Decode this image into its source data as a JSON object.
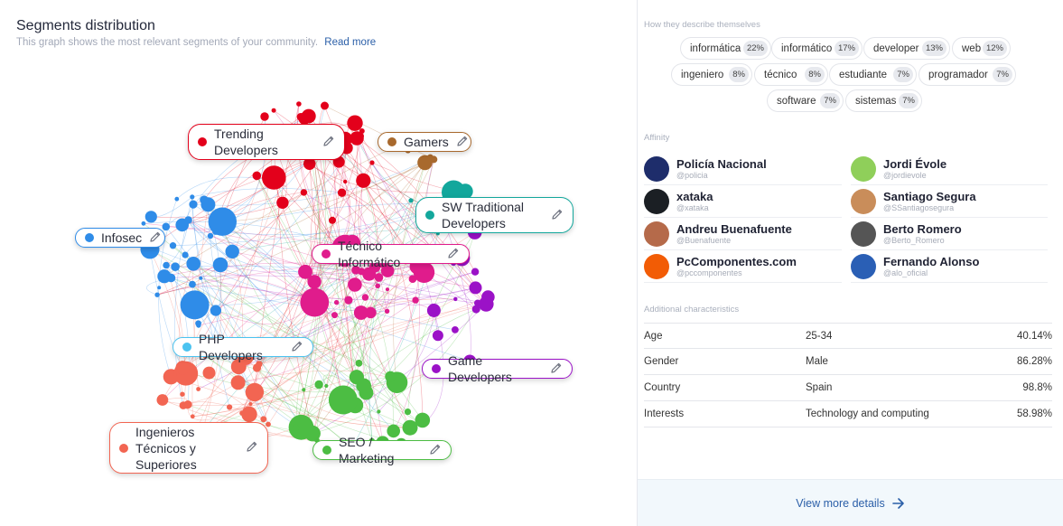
{
  "segments": {
    "title": "Segments distribution",
    "subtitle": "This graph shows the most relevant segments of your community.",
    "read_more": "Read more",
    "labels": [
      {
        "id": "trending",
        "lines": [
          "Trending",
          "Developers"
        ],
        "color": "#e3001b",
        "border": "#e3001b"
      },
      {
        "id": "gamers",
        "lines": [
          "Gamers"
        ],
        "color": "#a8692d",
        "border": "#a8692d"
      },
      {
        "id": "sw",
        "lines": [
          "SW Traditional",
          "Developers"
        ],
        "color": "#13a79c",
        "border": "#13a79c"
      },
      {
        "id": "infosec",
        "lines": [
          "Infosec"
        ],
        "color": "#2f8ce8",
        "border": "#2f8ce8"
      },
      {
        "id": "tecnico",
        "lines": [
          "Técnico Informático"
        ],
        "color": "#e01c8c",
        "border": "#e01c8c"
      },
      {
        "id": "php",
        "lines": [
          "PHP Developers"
        ],
        "color": "#4bc3f0",
        "border": "#4bc3f0"
      },
      {
        "id": "game",
        "lines": [
          "Game Developers"
        ],
        "color": "#9b12c7",
        "border": "#9b12c7"
      },
      {
        "id": "ingenieros",
        "lines": [
          "Ingenieros",
          "Técnicos y",
          "Superiores"
        ],
        "color": "#f26552",
        "border": "#f26552"
      },
      {
        "id": "seo",
        "lines": [
          "SEO / Marketing"
        ],
        "color": "#4cbd43",
        "border": "#4cbd43"
      }
    ]
  },
  "describe": {
    "heading": "How they describe themselves",
    "chips": [
      {
        "label": "informática",
        "pct": "22%"
      },
      {
        "label": "informático",
        "pct": "17%"
      },
      {
        "label": "developer",
        "pct": "13%"
      },
      {
        "label": "web",
        "pct": "12%"
      },
      {
        "label": "ingeniero",
        "pct": "8%"
      },
      {
        "label": "técnico",
        "pct": "8%"
      },
      {
        "label": "estudiante",
        "pct": "7%"
      },
      {
        "label": "programador",
        "pct": "7%"
      },
      {
        "label": "software",
        "pct": "7%"
      },
      {
        "label": "sistemas",
        "pct": "7%"
      }
    ]
  },
  "affinity": {
    "heading": "Affinity",
    "accounts": [
      {
        "name": "Policía Nacional",
        "handle": "@policia",
        "color": "#1e2d6b"
      },
      {
        "name": "Jordi Évole",
        "handle": "@jordievole",
        "color": "#8fcf5a"
      },
      {
        "name": "xataka",
        "handle": "@xataka",
        "color": "#1b1f24"
      },
      {
        "name": "Santiago Segura",
        "handle": "@SSantiagosegura",
        "color": "#c98d5a"
      },
      {
        "name": "Andreu Buenafuente",
        "handle": "@Buenafuente",
        "color": "#b56a4a"
      },
      {
        "name": "Berto Romero",
        "handle": "@Berto_Romero",
        "color": "#555555"
      },
      {
        "name": "PcComponentes.com",
        "handle": "@pccomponentes",
        "color": "#f25c05"
      },
      {
        "name": "Fernando Alonso",
        "handle": "@alo_oficial",
        "color": "#2a5fb5"
      }
    ]
  },
  "additional": {
    "heading": "Additional characteristics",
    "rows": [
      {
        "label": "Age",
        "value": "25-34",
        "pct": "40.14%"
      },
      {
        "label": "Gender",
        "value": "Male",
        "pct": "86.28%"
      },
      {
        "label": "Country",
        "value": "Spain",
        "pct": "98.8%"
      },
      {
        "label": "Interests",
        "value": "Technology and computing",
        "pct": "58.98%"
      }
    ]
  },
  "footer": {
    "view_more": "View more details"
  }
}
